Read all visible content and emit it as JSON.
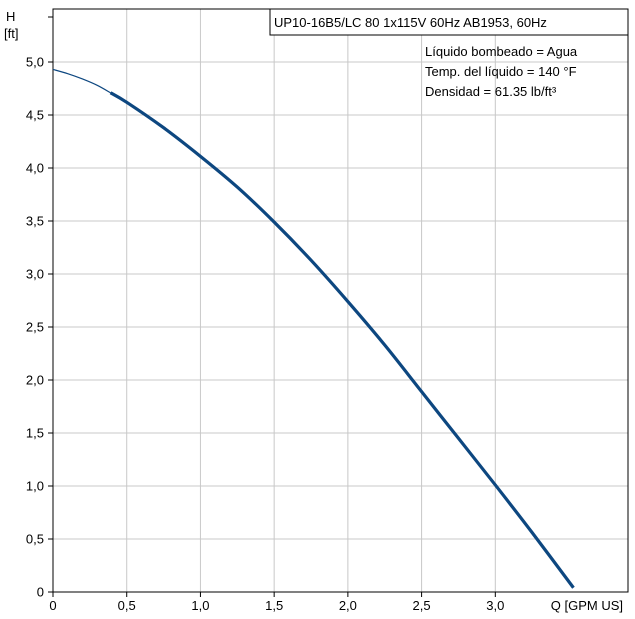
{
  "chart_data": {
    "type": "line",
    "title": "UP10-16B5/LC 80 1x115V 60Hz AB1953, 60Hz",
    "info_lines": [
      "Líquido bombeado = Agua",
      "Temp. del líquido = 140 °F",
      "Densidad = 61.35 lb/ft³"
    ],
    "ylabel_line1": "H",
    "ylabel_line2": "[ft]",
    "xlabel": "Q [GPM US]",
    "xlim": [
      0,
      3.9
    ],
    "ylim": [
      0,
      5.5
    ],
    "grid": true,
    "x_ticks": [
      0,
      0.5,
      1.0,
      1.5,
      2.0,
      2.5,
      3.0
    ],
    "x_tick_labels": [
      "0",
      "0,5",
      "1,0",
      "1,5",
      "2,0",
      "2,5",
      "3,0"
    ],
    "y_ticks": [
      0,
      0.5,
      1.0,
      1.5,
      2.0,
      2.5,
      3.0,
      3.5,
      4.0,
      4.5,
      5.0
    ],
    "y_tick_labels": [
      "0",
      "0,5",
      "1,0",
      "1,5",
      "2,0",
      "2,5",
      "3,0",
      "3,5",
      "4,0",
      "4,5",
      "5,0"
    ],
    "series": [
      {
        "color": "#0d4780",
        "x": [
          0,
          0.1,
          0.2,
          0.3,
          0.39
        ],
        "y": [
          4.93,
          4.89,
          4.84,
          4.78,
          4.71
        ],
        "width": "thin"
      },
      {
        "color": "#0d4780",
        "x": [
          0.39,
          0.5,
          0.75,
          1.0,
          1.25,
          1.5,
          1.75,
          2.0,
          2.25,
          2.5,
          2.75,
          3.0,
          3.25,
          3.53
        ],
        "y": [
          4.71,
          4.62,
          4.38,
          4.11,
          3.82,
          3.49,
          3.13,
          2.74,
          2.33,
          1.89,
          1.45,
          1.01,
          0.56,
          0.04
        ],
        "width": "thick"
      }
    ]
  }
}
